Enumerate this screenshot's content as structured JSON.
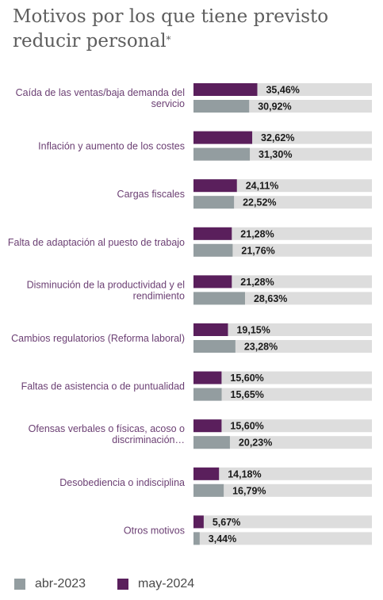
{
  "title_main": "Motivos por los que tiene previsto reducir personal",
  "title_mark": "*",
  "colors": {
    "may2024": "#5a1f5c",
    "abr2023": "#939da0",
    "track": "#dddddd"
  },
  "chart_data": {
    "type": "bar",
    "orientation": "horizontal",
    "xlim": [
      0,
      100
    ],
    "categories": [
      [
        "Caída de las ventas/baja demanda del",
        "servicio"
      ],
      [
        "Inflación y aumento de los costes"
      ],
      [
        "Cargas fiscales"
      ],
      [
        "Falta de adaptación al puesto de trabajo"
      ],
      [
        "Disminución de la productividad y el",
        "rendimiento"
      ],
      [
        "Cambios regulatorios (Reforma laboral)"
      ],
      [
        "Faltas de asistencia o de puntualidad"
      ],
      [
        "Ofensas verbales o físicas, acoso o",
        "discriminación…"
      ],
      [
        "Desobediencia o indisciplina"
      ],
      [
        "Otros motivos"
      ]
    ],
    "series": [
      {
        "name": "may-2024",
        "values": [
          35.46,
          32.62,
          24.11,
          21.28,
          21.28,
          19.15,
          15.6,
          15.6,
          14.18,
          5.67
        ],
        "labels": [
          "35,46%",
          "32,62%",
          "24,11%",
          "21,28%",
          "21,28%",
          "19,15%",
          "15,60%",
          "15,60%",
          "14,18%",
          "5,67%"
        ]
      },
      {
        "name": "abr-2023",
        "values": [
          30.92,
          31.3,
          22.52,
          21.76,
          28.63,
          23.28,
          15.65,
          20.23,
          16.79,
          3.44
        ],
        "labels": [
          "30,92%",
          "31,30%",
          "22,52%",
          "21,76%",
          "28,63%",
          "23,28%",
          "15,65%",
          "20,23%",
          "16,79%",
          "3,44%"
        ]
      }
    ],
    "legend": {
      "position": "bottom-left",
      "entries": [
        "abr-2023",
        "may-2024"
      ]
    }
  }
}
